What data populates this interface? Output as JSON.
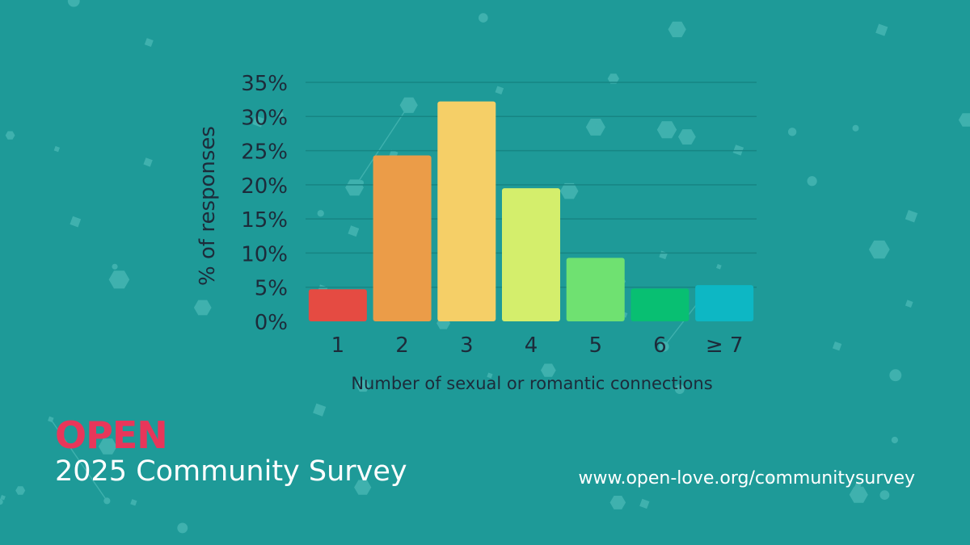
{
  "chart_data": {
    "type": "bar",
    "categories": [
      "1",
      "2",
      "3",
      "4",
      "5",
      "6",
      "≥ 7"
    ],
    "values": [
      4.7,
      24.3,
      32.2,
      19.5,
      9.3,
      4.8,
      5.3
    ],
    "ylabel": "% of responses",
    "xlabel": "Number of sexual or romantic connections",
    "ylim": [
      0,
      35
    ],
    "yticks": [
      0,
      5,
      10,
      15,
      20,
      25,
      30,
      35
    ],
    "ytick_labels": [
      "0%",
      "5%",
      "10%",
      "15%",
      "20%",
      "25%",
      "30%",
      "35%"
    ],
    "colors": [
      "#e54b42",
      "#eb9c48",
      "#f5cf67",
      "#d4ee6c",
      "#6fe171",
      "#08bf72",
      "#0db7c4"
    ],
    "grid": true
  },
  "footer": {
    "brand": "OPEN",
    "title": "2025 Community Survey",
    "url": "www.open-love.org/communitysurvey"
  }
}
